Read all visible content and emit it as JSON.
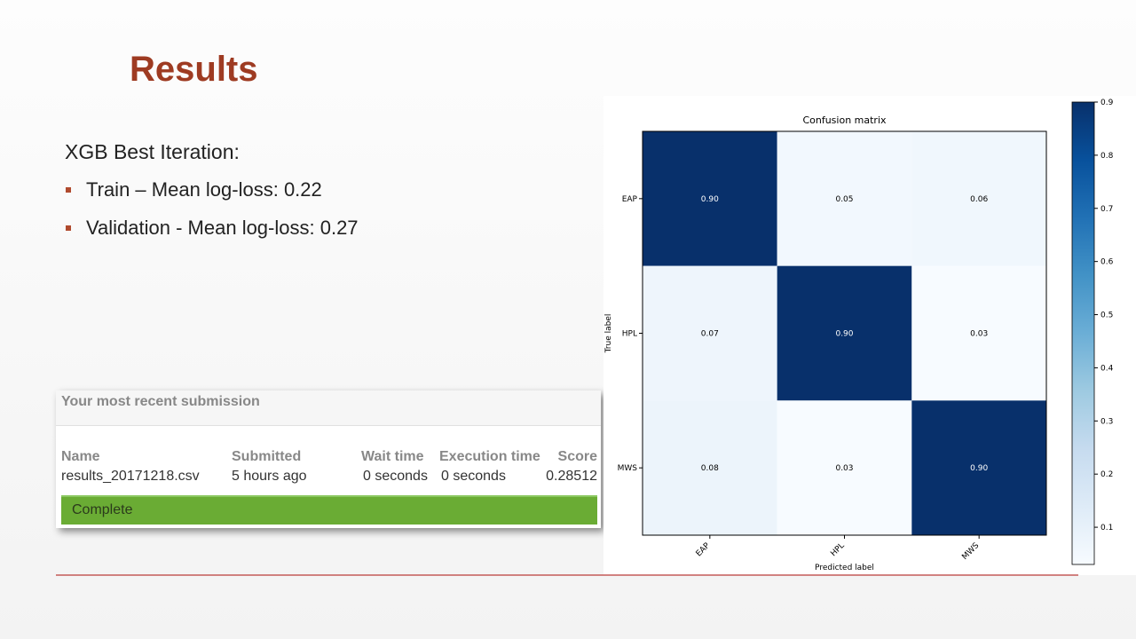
{
  "slide": {
    "title": "Results",
    "heading": "XGB Best Iteration:",
    "bullets": [
      "Train – Mean log-loss: 0.22",
      "Validation - Mean log-loss: 0.27"
    ]
  },
  "submission": {
    "title": "Your most recent submission",
    "columns": [
      "Name",
      "Submitted",
      "Wait time",
      "Execution time",
      "Score"
    ],
    "row": [
      "results_20171218.csv",
      "5 hours ago",
      "0 seconds",
      "0 seconds",
      "0.28512"
    ],
    "status": "Complete"
  },
  "chart_data": {
    "type": "heatmap",
    "title": "Confusion matrix",
    "x_label": "Predicted label",
    "y_label": "True label",
    "x_categories": [
      "EAP",
      "HPL",
      "MWS"
    ],
    "y_categories": [
      "EAP",
      "HPL",
      "MWS"
    ],
    "values": [
      [
        0.9,
        0.05,
        0.06
      ],
      [
        0.07,
        0.9,
        0.03
      ],
      [
        0.08,
        0.03,
        0.9
      ]
    ],
    "value_labels": [
      [
        "0.90",
        "0.05",
        "0.06"
      ],
      [
        "0.07",
        "0.90",
        "0.03"
      ],
      [
        "0.08",
        "0.03",
        "0.90"
      ]
    ],
    "colormap": "Blues",
    "clim": [
      0.03,
      0.9
    ],
    "colorbar_ticks": [
      0.1,
      0.2,
      0.3,
      0.4,
      0.5,
      0.6,
      0.7,
      0.8,
      0.9
    ]
  }
}
